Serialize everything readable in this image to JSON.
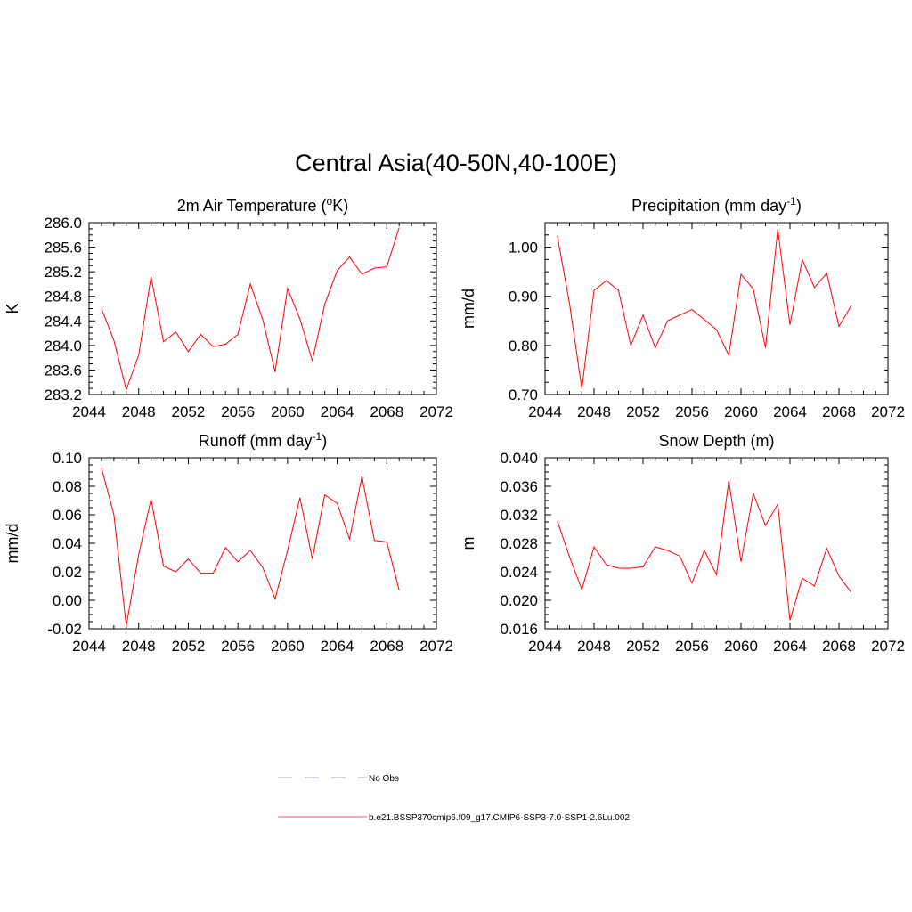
{
  "title": "Central Asia(40-50N,40-100E)",
  "chart_data": [
    {
      "type": "line",
      "title": "2m Air Temperature (",
      "title_sup": "o",
      "title_after": "K)",
      "ylabel": "K",
      "xlim": [
        2044,
        2072
      ],
      "xticks": [
        "2044",
        "2048",
        "2052",
        "2056",
        "2060",
        "2064",
        "2068",
        "2072"
      ],
      "ylim": [
        283.2,
        286.0
      ],
      "yticks": [
        "283.2",
        "283.6",
        "284.0",
        "284.4",
        "284.8",
        "285.2",
        "285.6",
        "286.0"
      ],
      "x": [
        2045,
        2046,
        2047,
        2048,
        2049,
        2050,
        2051,
        2052,
        2053,
        2054,
        2055,
        2056,
        2057,
        2058,
        2059,
        2060,
        2061,
        2062,
        2063,
        2064,
        2065,
        2066,
        2067,
        2068,
        2069
      ],
      "series": [
        {
          "values": [
            284.6,
            284.08,
            283.28,
            283.84,
            285.12,
            284.06,
            284.22,
            283.9,
            284.18,
            283.98,
            284.02,
            284.18,
            285.0,
            284.42,
            283.57,
            284.93,
            284.43,
            283.75,
            284.67,
            285.22,
            285.44,
            285.16,
            285.26,
            285.28,
            285.92
          ],
          "color": "#ff0000"
        }
      ]
    },
    {
      "type": "line",
      "title": "Precipitation (mm day",
      "title_sup": "-1",
      "title_after": ")",
      "ylabel": "mm/d",
      "xlim": [
        2044,
        2072
      ],
      "xticks": [
        "2044",
        "2048",
        "2052",
        "2056",
        "2060",
        "2064",
        "2068",
        "2072"
      ],
      "ylim": [
        0.7,
        1.05
      ],
      "yticks": [
        "0.70",
        "0.80",
        "0.90",
        "1.00"
      ],
      "x": [
        2045,
        2046,
        2047,
        2048,
        2049,
        2050,
        2051,
        2052,
        2053,
        2054,
        2055,
        2056,
        2057,
        2058,
        2059,
        2060,
        2061,
        2062,
        2063,
        2064,
        2065,
        2066,
        2067,
        2068,
        2069
      ],
      "series": [
        {
          "values": [
            1.023,
            0.885,
            0.712,
            0.912,
            0.932,
            0.912,
            0.8,
            0.862,
            0.795,
            0.85,
            0.862,
            0.873,
            0.853,
            0.832,
            0.78,
            0.945,
            0.915,
            0.795,
            1.037,
            0.842,
            0.975,
            0.918,
            0.947,
            0.839,
            0.881
          ],
          "color": "#ff0000"
        }
      ]
    },
    {
      "type": "line",
      "title": "Runoff (mm day",
      "title_sup": "-1",
      "title_after": ")",
      "ylabel": "mm/d",
      "xlim": [
        2044,
        2072
      ],
      "xticks": [
        "2044",
        "2048",
        "2052",
        "2056",
        "2060",
        "2064",
        "2068",
        "2072"
      ],
      "ylim": [
        -0.02,
        0.1
      ],
      "yticks": [
        "-0.02",
        "0.00",
        "0.02",
        "0.04",
        "0.06",
        "0.08",
        "0.10"
      ],
      "x": [
        2045,
        2046,
        2047,
        2048,
        2049,
        2050,
        2051,
        2052,
        2053,
        2054,
        2055,
        2056,
        2057,
        2058,
        2059,
        2060,
        2061,
        2062,
        2063,
        2064,
        2065,
        2066,
        2067,
        2068,
        2069
      ],
      "series": [
        {
          "values": [
            0.093,
            0.06,
            -0.018,
            0.032,
            0.071,
            0.024,
            0.02,
            0.029,
            0.019,
            0.019,
            0.037,
            0.027,
            0.035,
            0.023,
            0.001,
            0.035,
            0.072,
            0.029,
            0.074,
            0.068,
            0.043,
            0.087,
            0.042,
            0.041,
            0.007
          ],
          "color": "#ff0000"
        }
      ]
    },
    {
      "type": "line",
      "title": "Snow Depth (m)",
      "title_sup": "",
      "title_after": "",
      "ylabel": "m",
      "xlim": [
        2044,
        2072
      ],
      "xticks": [
        "2044",
        "2048",
        "2052",
        "2056",
        "2060",
        "2064",
        "2068",
        "2072"
      ],
      "ylim": [
        0.016,
        0.04
      ],
      "yticks": [
        "0.016",
        "0.020",
        "0.024",
        "0.028",
        "0.032",
        "0.036",
        "0.040"
      ],
      "x": [
        2045,
        2046,
        2047,
        2048,
        2049,
        2050,
        2051,
        2052,
        2053,
        2054,
        2055,
        2056,
        2057,
        2058,
        2059,
        2060,
        2061,
        2062,
        2063,
        2064,
        2065,
        2066,
        2067,
        2068,
        2069
      ],
      "series": [
        {
          "values": [
            0.0311,
            0.0261,
            0.0215,
            0.0275,
            0.025,
            0.0245,
            0.0245,
            0.0247,
            0.0275,
            0.027,
            0.0262,
            0.0224,
            0.027,
            0.0236,
            0.0368,
            0.0254,
            0.035,
            0.0305,
            0.0335,
            0.0172,
            0.0231,
            0.022,
            0.0273,
            0.0234,
            0.0211
          ],
          "color": "#ff0000"
        }
      ]
    }
  ],
  "legend": [
    {
      "label": "No Obs",
      "color": "#aaaadd",
      "dash": true
    },
    {
      "label": "b.e21.BSSP370cmip6.f09_g17.CMIP6-SSP3-7.0-SSP1-2.6Lu.002",
      "color": "#ff5555",
      "dash": false
    }
  ]
}
